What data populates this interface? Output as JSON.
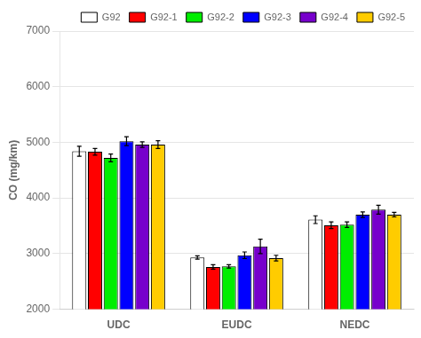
{
  "chart_data": {
    "type": "bar",
    "categories": [
      "UDC",
      "EUDC",
      "NEDC"
    ],
    "series": [
      {
        "name": "G92",
        "color": "white",
        "values": [
          4840,
          2930,
          3610
        ],
        "errors": [
          90,
          30,
          70
        ]
      },
      {
        "name": "G92-1",
        "color": "#ff0000",
        "values": [
          4830,
          2760,
          3510
        ],
        "errors": [
          60,
          40,
          60
        ]
      },
      {
        "name": "G92-2",
        "color": "#00ee00",
        "values": [
          4720,
          2770,
          3520
        ],
        "errors": [
          70,
          30,
          50
        ]
      },
      {
        "name": "G92-3",
        "color": "#0000ff",
        "values": [
          5020,
          2970,
          3700
        ],
        "errors": [
          80,
          60,
          50
        ]
      },
      {
        "name": "G92-4",
        "color": "#7700cc",
        "values": [
          4960,
          3130,
          3790
        ],
        "errors": [
          50,
          130,
          80
        ]
      },
      {
        "name": "G92-5",
        "color": "#ffcc00",
        "values": [
          4960,
          2920,
          3700
        ],
        "errors": [
          70,
          50,
          40
        ]
      }
    ],
    "ylabel": "CO (mg/km)",
    "ylim": [
      2000,
      7000
    ],
    "yticks": [
      2000,
      3000,
      4000,
      5000,
      6000,
      7000
    ],
    "grid": true,
    "legend": "upper right"
  }
}
